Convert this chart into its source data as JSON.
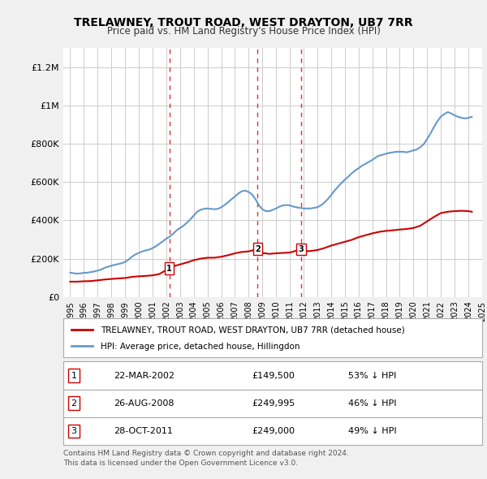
{
  "title": "TRELAWNEY, TROUT ROAD, WEST DRAYTON, UB7 7RR",
  "subtitle": "Price paid vs. HM Land Registry's House Price Index (HPI)",
  "legend_line1": "TRELAWNEY, TROUT ROAD, WEST DRAYTON, UB7 7RR (detached house)",
  "legend_line2": "HPI: Average price, detached house, Hillingdon",
  "footer1": "Contains HM Land Registry data © Crown copyright and database right 2024.",
  "footer2": "This data is licensed under the Open Government Licence v3.0.",
  "hpi_color": "#6699cc",
  "price_color": "#cc0000",
  "vline_color": "#cc0000",
  "background_color": "#f0f0f0",
  "plot_background": "#ffffff",
  "ylim": [
    0,
    1300000
  ],
  "yticks": [
    0,
    200000,
    400000,
    600000,
    800000,
    1000000,
    1200000
  ],
  "ytick_labels": [
    "£0",
    "£200K",
    "£400K",
    "£600K",
    "£800K",
    "£1M",
    "£1.2M"
  ],
  "transactions": [
    {
      "label": "1",
      "date": "22-MAR-2002",
      "price": 149500,
      "pct": "53% ↓ HPI",
      "x_year": 2002.22
    },
    {
      "label": "2",
      "date": "26-AUG-2008",
      "price": 249995,
      "pct": "46% ↓ HPI",
      "x_year": 2008.65
    },
    {
      "label": "3",
      "date": "28-OCT-2011",
      "price": 249000,
      "pct": "49% ↓ HPI",
      "x_year": 2011.82
    }
  ],
  "hpi_data": {
    "years": [
      1995.0,
      1995.25,
      1995.5,
      1995.75,
      1996.0,
      1996.25,
      1996.5,
      1996.75,
      1997.0,
      1997.25,
      1997.5,
      1997.75,
      1998.0,
      1998.25,
      1998.5,
      1998.75,
      1999.0,
      1999.25,
      1999.5,
      1999.75,
      2000.0,
      2000.25,
      2000.5,
      2000.75,
      2001.0,
      2001.25,
      2001.5,
      2001.75,
      2002.0,
      2002.25,
      2002.5,
      2002.75,
      2003.0,
      2003.25,
      2003.5,
      2003.75,
      2004.0,
      2004.25,
      2004.5,
      2004.75,
      2005.0,
      2005.25,
      2005.5,
      2005.75,
      2006.0,
      2006.25,
      2006.5,
      2006.75,
      2007.0,
      2007.25,
      2007.5,
      2007.75,
      2008.0,
      2008.25,
      2008.5,
      2008.75,
      2009.0,
      2009.25,
      2009.5,
      2009.75,
      2010.0,
      2010.25,
      2010.5,
      2010.75,
      2011.0,
      2011.25,
      2011.5,
      2011.75,
      2012.0,
      2012.25,
      2012.5,
      2012.75,
      2013.0,
      2013.25,
      2013.5,
      2013.75,
      2014.0,
      2014.25,
      2014.5,
      2014.75,
      2015.0,
      2015.25,
      2015.5,
      2015.75,
      2016.0,
      2016.25,
      2016.5,
      2016.75,
      2017.0,
      2017.25,
      2017.5,
      2017.75,
      2018.0,
      2018.25,
      2018.5,
      2018.75,
      2019.0,
      2019.25,
      2019.5,
      2019.75,
      2020.0,
      2020.25,
      2020.5,
      2020.75,
      2021.0,
      2021.25,
      2021.5,
      2021.75,
      2022.0,
      2022.25,
      2022.5,
      2022.75,
      2023.0,
      2023.25,
      2023.5,
      2023.75,
      2024.0,
      2024.25
    ],
    "values": [
      127000,
      124000,
      122000,
      123000,
      126000,
      127000,
      130000,
      133000,
      138000,
      143000,
      152000,
      158000,
      163000,
      168000,
      172000,
      176000,
      183000,
      195000,
      210000,
      222000,
      230000,
      238000,
      243000,
      247000,
      255000,
      265000,
      278000,
      290000,
      305000,
      315000,
      330000,
      348000,
      360000,
      372000,
      388000,
      405000,
      425000,
      445000,
      455000,
      460000,
      462000,
      460000,
      458000,
      460000,
      468000,
      480000,
      495000,
      510000,
      525000,
      540000,
      552000,
      555000,
      548000,
      535000,
      510000,
      478000,
      458000,
      448000,
      448000,
      455000,
      462000,
      472000,
      478000,
      480000,
      478000,
      472000,
      468000,
      465000,
      462000,
      462000,
      462000,
      465000,
      468000,
      478000,
      492000,
      510000,
      532000,
      555000,
      575000,
      595000,
      612000,
      628000,
      645000,
      660000,
      672000,
      685000,
      695000,
      705000,
      715000,
      728000,
      738000,
      742000,
      748000,
      752000,
      755000,
      758000,
      758000,
      758000,
      755000,
      760000,
      765000,
      770000,
      782000,
      798000,
      825000,
      855000,
      888000,
      918000,
      942000,
      955000,
      965000,
      958000,
      948000,
      940000,
      935000,
      932000,
      935000,
      940000
    ]
  },
  "price_data": {
    "years": [
      1995.0,
      1995.5,
      1996.0,
      1996.5,
      1997.0,
      1997.5,
      1998.0,
      1998.5,
      1999.0,
      1999.5,
      2000.0,
      2000.5,
      2001.0,
      2001.5,
      2002.22,
      2002.5,
      2003.0,
      2003.5,
      2004.0,
      2004.5,
      2005.0,
      2005.5,
      2006.0,
      2006.5,
      2007.0,
      2007.5,
      2008.0,
      2008.65,
      2009.0,
      2009.5,
      2010.0,
      2010.5,
      2011.0,
      2011.82,
      2012.0,
      2012.5,
      2013.0,
      2013.5,
      2014.0,
      2014.5,
      2015.0,
      2015.5,
      2016.0,
      2016.5,
      2017.0,
      2017.5,
      2018.0,
      2018.5,
      2019.0,
      2019.5,
      2020.0,
      2020.5,
      2021.0,
      2021.5,
      2022.0,
      2022.5,
      2023.0,
      2023.5,
      2024.0,
      2024.25
    ],
    "values": [
      80000,
      80000,
      82000,
      83000,
      87000,
      91000,
      94000,
      97000,
      99000,
      105000,
      108000,
      110000,
      113000,
      120000,
      149500,
      160000,
      170000,
      180000,
      192000,
      200000,
      205000,
      205000,
      210000,
      218000,
      228000,
      235000,
      238000,
      249995,
      230000,
      225000,
      228000,
      230000,
      232000,
      249000,
      238000,
      240000,
      245000,
      255000,
      268000,
      278000,
      288000,
      298000,
      312000,
      322000,
      332000,
      340000,
      345000,
      348000,
      352000,
      355000,
      360000,
      372000,
      395000,
      418000,
      438000,
      445000,
      448000,
      450000,
      448000,
      445000
    ]
  },
  "xlim": [
    1994.5,
    2025.0
  ],
  "xtick_years": [
    1995,
    1996,
    1997,
    1998,
    1999,
    2000,
    2001,
    2002,
    2003,
    2004,
    2005,
    2006,
    2007,
    2008,
    2009,
    2010,
    2011,
    2012,
    2013,
    2014,
    2015,
    2016,
    2017,
    2018,
    2019,
    2020,
    2021,
    2022,
    2023,
    2024,
    2025
  ]
}
